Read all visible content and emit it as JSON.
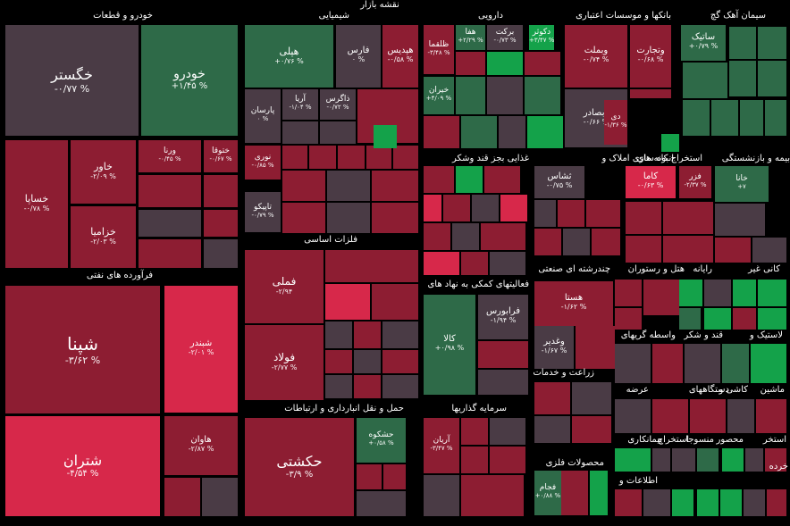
{
  "map_title": "نقشه بازار",
  "colors": {
    "deep_red": "#8d1d32",
    "bright_red": "#d7284a",
    "mid_red": "#a82440",
    "grey": "#4a3b45",
    "dark_green": "#2e6a48",
    "green": "#14a24a",
    "background": "#000000"
  },
  "sectors": [
    "خودرو و قطعات",
    "شیمیایی",
    "دارویی",
    "بانکها و موسسات اعتباری",
    "سیمان آهک گچ",
    "فرآورده های نفتی",
    "فلزات اساسی",
    "غذایی بجز قند وشکر",
    "انبوه سازی املاک و",
    "استخراج کانه های",
    "بیمه و بازنشستگی",
    "فعالیتهای کمکی به نهاد های",
    "چندرشته ای صنعتی",
    "هتل و رستوران",
    "رایانه",
    "کانی غیر",
    "حمل و نقل انبارداری و ارتباطات",
    "سرمایه گذاریها",
    "زراعت و خدمات",
    "واسطه گریهای",
    "قند و شکر",
    "لاستیک و",
    "عرضه",
    "دستگاههای",
    "کاشی و",
    "ماشین",
    "محصولات فلزی",
    "پیمانکاری",
    "استخراج",
    "منسوجا",
    "محصور",
    "استخر",
    "خرده",
    "اطلاعات و"
  ],
  "cells": [
    {
      "symbol": "خگستر",
      "change": "-۰/۷۷ %"
    },
    {
      "symbol": "خودرو",
      "change": "+۱/۴۵ %"
    },
    {
      "symbol": "خساپا",
      "change": "-۰/۷۸ %"
    },
    {
      "symbol": "خاور",
      "change": "-۲/۰۹ %"
    },
    {
      "symbol": "خزامیا",
      "change": "-۲/۰۳ %"
    },
    {
      "symbol": "ورنا",
      "change": "-۰/۴۵ %"
    },
    {
      "symbol": "ختوقا",
      "change": "-۰/۶۷ %"
    },
    {
      "symbol": "شپنا",
      "change": "-۳/۶۲ %"
    },
    {
      "symbol": "شبندر",
      "change": "-۲/۰۱ %"
    },
    {
      "symbol": "شتران",
      "change": "-۴/۵۴ %"
    },
    {
      "symbol": "هاوان",
      "change": "-۲/۸۷ %"
    },
    {
      "symbol": "هپلی",
      "change": "+۰/۷۶ %"
    },
    {
      "symbol": "فارس",
      "change": "۰ %"
    },
    {
      "symbol": "هپدیس",
      "change": "-۰/۵۸ %"
    },
    {
      "symbol": "پارسان",
      "change": "۰ %"
    },
    {
      "symbol": "آریا",
      "change": "-۱/۰۴ %"
    },
    {
      "symbol": "ذاگرس",
      "change": "-۰/۷۲ %"
    },
    {
      "symbol": "نوری",
      "change": "-۰/۸۵ %"
    },
    {
      "symbol": "تاپیکو",
      "change": "-۰/۷۹ %"
    },
    {
      "symbol": "فملی",
      "change": "-۲/۹۴"
    },
    {
      "symbol": "فولاد",
      "change": "-۲/۷۷ %"
    },
    {
      "symbol": "حکشتی",
      "change": "-۳/۹ %"
    },
    {
      "symbol": "حشکوه",
      "change": "+۰/۵۸ %"
    },
    {
      "symbol": "ظلقما",
      "change": "-۳/۴۸ %"
    },
    {
      "symbol": "هفا",
      "change": "+۲/۲۹ %"
    },
    {
      "symbol": "برکت",
      "change": "-۰/۷۳ %"
    },
    {
      "symbol": "دکوثر",
      "change": "+۳/۴۷ %"
    },
    {
      "symbol": "خیران",
      "change": "+۴/۰۹ %"
    },
    {
      "symbol": "وبملت",
      "change": "-۰/۷۴ %"
    },
    {
      "symbol": "وتجارت",
      "change": "-۰/۶۸ %"
    },
    {
      "symbol": "وبصادر",
      "change": "-۰/۶۶ %"
    },
    {
      "symbol": "دی",
      "change": "-۱/۳۶ %"
    },
    {
      "symbol": "ساتیک",
      "change": "+۰/۷۹ %"
    },
    {
      "symbol": "کاما",
      "change": "-۰/۶۳ %"
    },
    {
      "symbol": "فزر",
      "change": "-۲/۳۷ %"
    },
    {
      "symbol": "ثشاس",
      "change": "-۰/۷۵ %"
    },
    {
      "symbol": "خانا",
      "change": "+۷"
    },
    {
      "symbol": "فرابورس",
      "change": "-۱/۹۴ %"
    },
    {
      "symbol": "کالا",
      "change": "+۰/۹۸ %"
    },
    {
      "symbol": "هستا",
      "change": "-۱/۶۲ %"
    },
    {
      "symbol": "وغدیر",
      "change": "-۱/۶۷ %"
    },
    {
      "symbol": "آریان",
      "change": "-۳/۴۷ %"
    },
    {
      "symbol": "فجام",
      "change": "+۰/۸۸ %"
    }
  ]
}
